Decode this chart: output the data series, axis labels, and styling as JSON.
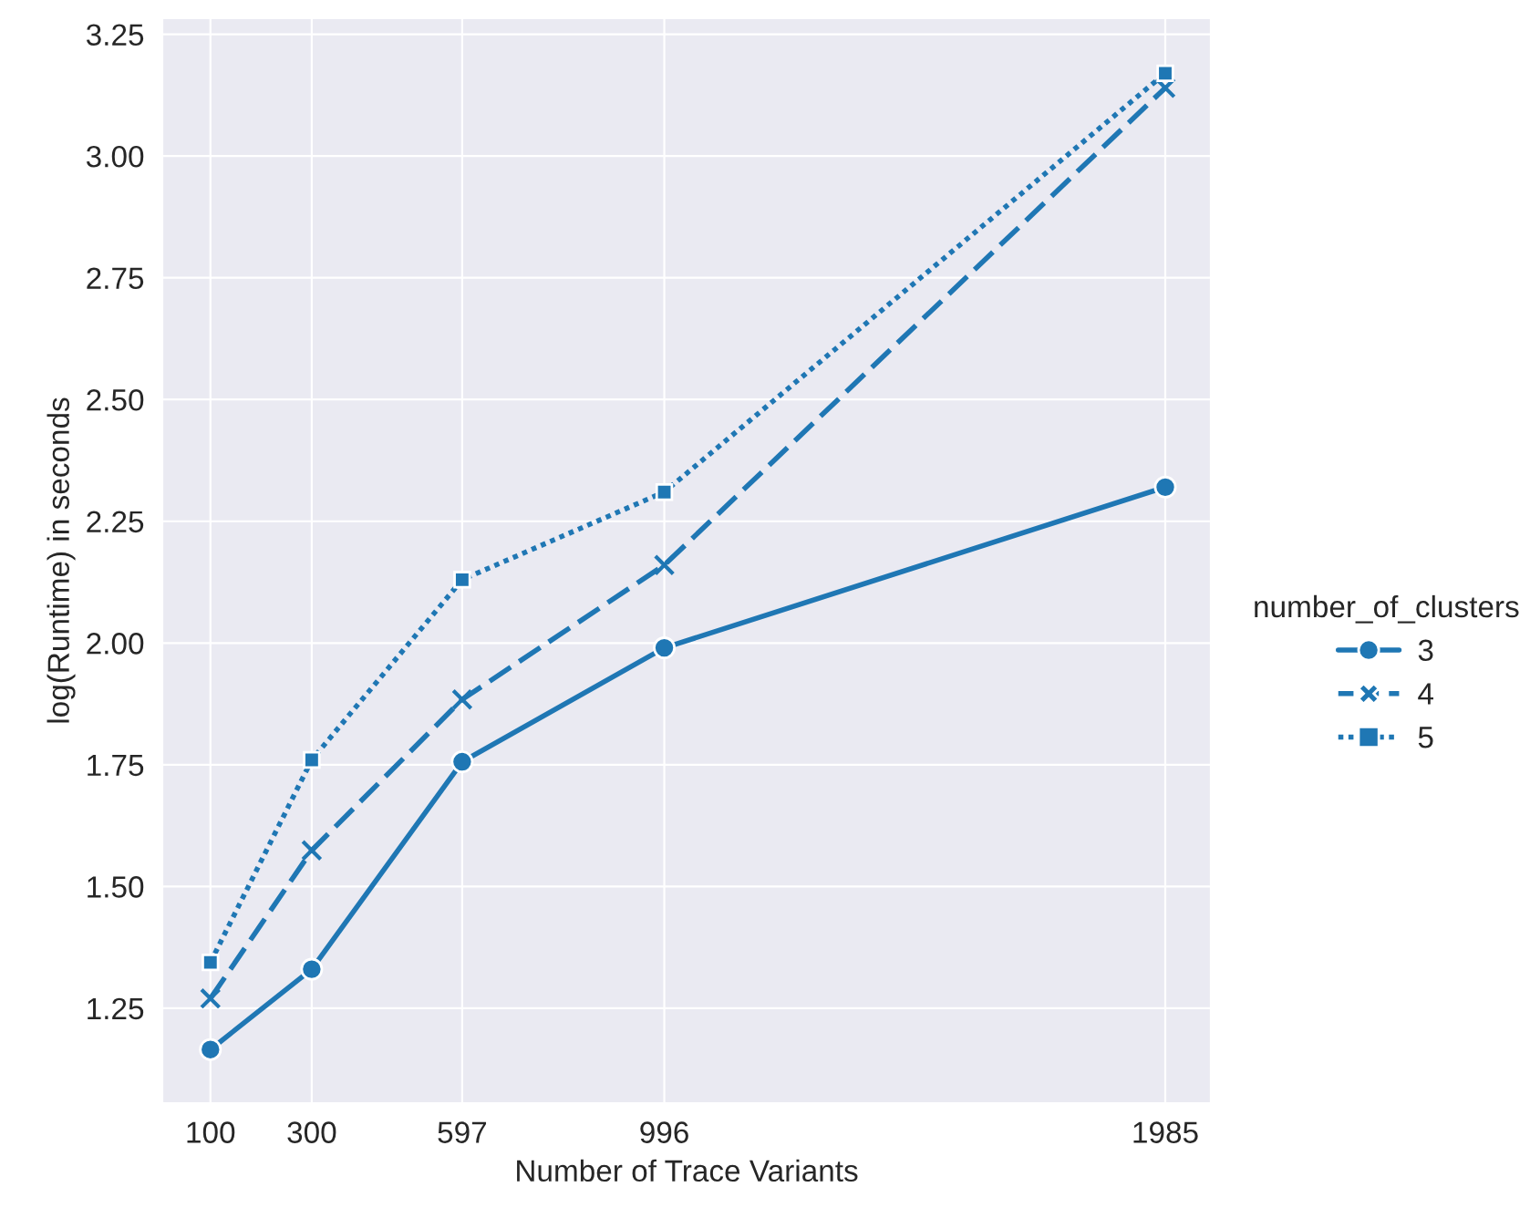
{
  "chart_data": {
    "type": "line",
    "xlabel": "Number of Trace Variants",
    "ylabel": "log(Runtime) in seconds",
    "legend_title": "number_of_clusters",
    "x": [
      100,
      300,
      597,
      996,
      1985
    ],
    "series": [
      {
        "name": "3",
        "color": "#1f77b4",
        "marker": "circle",
        "line_style": "solid",
        "values": [
          1.165,
          1.33,
          1.756,
          1.99,
          2.32
        ]
      },
      {
        "name": "4",
        "color": "#1f77b4",
        "marker": "cross",
        "line_style": "dashed",
        "values": [
          1.27,
          1.574,
          1.884,
          2.16,
          3.14
        ]
      },
      {
        "name": "5",
        "color": "#1f77b4",
        "marker": "square",
        "line_style": "dotted",
        "values": [
          1.344,
          1.76,
          2.13,
          2.31,
          3.17
        ]
      }
    ],
    "xlim": [
      5,
      2075
    ],
    "xticks": [
      100,
      300,
      597,
      996,
      1985
    ],
    "ylim": [
      1.055,
      3.283
    ],
    "yticks": [
      {
        "value": 1.25,
        "label": "1.25"
      },
      {
        "value": 1.5,
        "label": "1.50"
      },
      {
        "value": 1.75,
        "label": "1.75"
      },
      {
        "value": 2.0,
        "label": "2.00"
      },
      {
        "value": 2.25,
        "label": "2.25"
      },
      {
        "value": 2.5,
        "label": "2.50"
      },
      {
        "value": 2.75,
        "label": "2.75"
      },
      {
        "value": 3.0,
        "label": "3.00"
      },
      {
        "value": 3.25,
        "label": "3.25"
      }
    ],
    "grid": true,
    "legend": "right"
  }
}
